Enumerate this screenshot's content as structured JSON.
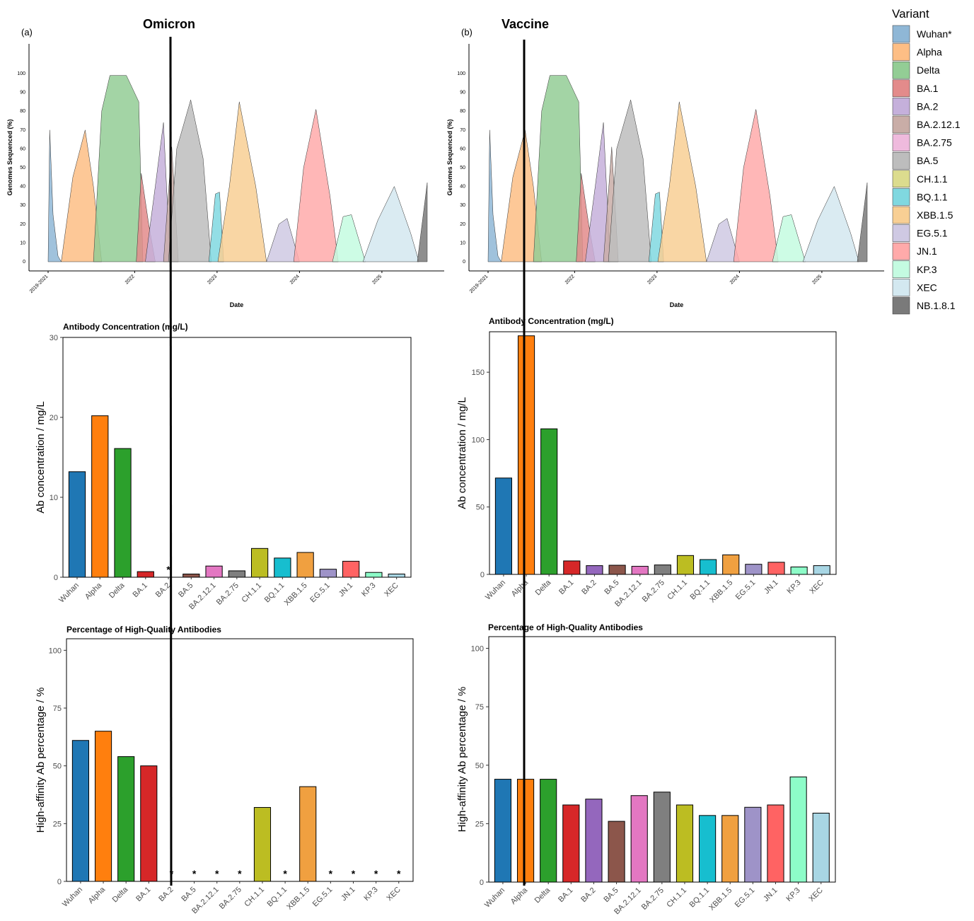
{
  "panels": [
    {
      "label": "(a)",
      "title": "Omicron"
    },
    {
      "label": "(b)",
      "title": "Vaccine"
    }
  ],
  "legend": {
    "title": "Variant",
    "items": [
      {
        "name": "Wuhan*",
        "color": "#8fb7d6"
      },
      {
        "name": "Alpha",
        "color": "#fdbe85"
      },
      {
        "name": "Delta",
        "color": "#93cd95"
      },
      {
        "name": "BA.1",
        "color": "#e38b8b"
      },
      {
        "name": "BA.2",
        "color": "#c5b0db"
      },
      {
        "name": "BA.2.12.1",
        "color": "#c9ada7"
      },
      {
        "name": "BA.2.75",
        "color": "#efbadd"
      },
      {
        "name": "BA.5",
        "color": "#bdbdbd"
      },
      {
        "name": "CH.1.1",
        "color": "#dcdc8e"
      },
      {
        "name": "BQ.1.1",
        "color": "#80d8e0"
      },
      {
        "name": "XBB.1.5",
        "color": "#f8cf94"
      },
      {
        "name": "EG.5.1",
        "color": "#cfc9e3"
      },
      {
        "name": "JN.1",
        "color": "#ffaaaa"
      },
      {
        "name": "KP.3",
        "color": "#c4fbe1"
      },
      {
        "name": "XEC",
        "color": "#d3e8f0"
      },
      {
        "name": "NB.1.8.1",
        "color": "#7a7a7a"
      }
    ]
  },
  "chart_data": [
    {
      "id": "omicron-sequencing",
      "type": "area",
      "ylabel": "Genomes Sequenced (%)",
      "xlabel": "Date",
      "x_ticks": [
        "2019-2021",
        "2022",
        "2023",
        "2024",
        "2025"
      ],
      "y_ticks": [
        0,
        10,
        20,
        30,
        40,
        50,
        60,
        70,
        80,
        90,
        100
      ],
      "ylim": [
        0,
        115
      ],
      "xlim": [
        2020.9,
        2025.5
      ],
      "series": [
        {
          "name": "Wuhan*",
          "x": [
            2020.9,
            2020.92,
            2020.96,
            2021.02,
            2021.06
          ],
          "y": [
            0,
            70,
            25,
            3,
            0
          ]
        },
        {
          "name": "Alpha",
          "x": [
            2021.06,
            2021.2,
            2021.35,
            2021.45,
            2021.55
          ],
          "y": [
            0,
            45,
            70,
            40,
            0
          ]
        },
        {
          "name": "Delta",
          "x": [
            2021.45,
            2021.55,
            2021.65,
            2021.85,
            2022.0,
            2022.05
          ],
          "y": [
            0,
            80,
            99,
            99,
            85,
            0
          ]
        },
        {
          "name": "BA.1",
          "x": [
            2021.97,
            2022.03,
            2022.12,
            2022.2
          ],
          "y": [
            0,
            47,
            20,
            0
          ]
        },
        {
          "name": "BA.2",
          "x": [
            2022.08,
            2022.2,
            2022.3,
            2022.38
          ],
          "y": [
            0,
            40,
            74,
            0
          ]
        },
        {
          "name": "BA.2.12.1",
          "x": [
            2022.3,
            2022.4,
            2022.48
          ],
          "y": [
            0,
            61,
            0
          ]
        },
        {
          "name": "BA.5",
          "x": [
            2022.36,
            2022.46,
            2022.63,
            2022.78,
            2022.88
          ],
          "y": [
            0,
            60,
            86,
            55,
            0
          ]
        },
        {
          "name": "BQ.1.1",
          "x": [
            2022.85,
            2022.93,
            2022.98,
            2023.03
          ],
          "y": [
            0,
            36,
            37,
            0
          ]
        },
        {
          "name": "XBB.1.5",
          "x": [
            2022.96,
            2023.1,
            2023.22,
            2023.42,
            2023.55
          ],
          "y": [
            0,
            40,
            85,
            40,
            0
          ]
        },
        {
          "name": "EG.5.1",
          "x": [
            2023.55,
            2023.7,
            2023.8,
            2023.95
          ],
          "y": [
            0,
            20,
            23,
            0
          ]
        },
        {
          "name": "JN.1",
          "x": [
            2023.88,
            2024.0,
            2024.15,
            2024.32,
            2024.42
          ],
          "y": [
            0,
            50,
            81,
            35,
            0
          ]
        },
        {
          "name": "KP.3",
          "x": [
            2024.35,
            2024.48,
            2024.58,
            2024.75
          ],
          "y": [
            0,
            24,
            25,
            0
          ]
        },
        {
          "name": "XEC",
          "x": [
            2024.72,
            2024.9,
            2025.1,
            2025.3,
            2025.4
          ],
          "y": [
            0,
            22,
            40,
            15,
            0
          ]
        },
        {
          "name": "NB.1.8.1",
          "x": [
            2025.38,
            2025.5,
            2025.5
          ],
          "y": [
            0,
            42,
            0
          ]
        }
      ]
    },
    {
      "id": "vaccine-sequencing",
      "type": "area",
      "ylabel": "Genomes Sequenced (%)",
      "xlabel": "Date",
      "x_ticks": [
        "2019-2021",
        "2022",
        "2023",
        "2024",
        "2025"
      ],
      "y_ticks": [
        0,
        10,
        20,
        30,
        40,
        50,
        60,
        70,
        80,
        90,
        100
      ],
      "ylim": [
        0,
        115
      ],
      "xlim": [
        2020.9,
        2025.5
      ],
      "series": [
        {
          "name": "Wuhan*",
          "x": [
            2020.9,
            2020.92,
            2020.96,
            2021.02,
            2021.06
          ],
          "y": [
            0,
            70,
            25,
            3,
            0
          ]
        },
        {
          "name": "Alpha",
          "x": [
            2021.06,
            2021.2,
            2021.35,
            2021.45,
            2021.55
          ],
          "y": [
            0,
            45,
            70,
            40,
            0
          ]
        },
        {
          "name": "Delta",
          "x": [
            2021.45,
            2021.55,
            2021.65,
            2021.85,
            2022.0,
            2022.05
          ],
          "y": [
            0,
            80,
            99,
            99,
            85,
            0
          ]
        },
        {
          "name": "BA.1",
          "x": [
            2021.97,
            2022.03,
            2022.12,
            2022.2
          ],
          "y": [
            0,
            47,
            20,
            0
          ]
        },
        {
          "name": "BA.2",
          "x": [
            2022.08,
            2022.2,
            2022.3,
            2022.38
          ],
          "y": [
            0,
            40,
            74,
            0
          ]
        },
        {
          "name": "BA.2.12.1",
          "x": [
            2022.3,
            2022.4,
            2022.48
          ],
          "y": [
            0,
            61,
            0
          ]
        },
        {
          "name": "BA.5",
          "x": [
            2022.36,
            2022.46,
            2022.63,
            2022.78,
            2022.88
          ],
          "y": [
            0,
            60,
            86,
            55,
            0
          ]
        },
        {
          "name": "BQ.1.1",
          "x": [
            2022.85,
            2022.93,
            2022.98,
            2023.03
          ],
          "y": [
            0,
            36,
            37,
            0
          ]
        },
        {
          "name": "XBB.1.5",
          "x": [
            2022.96,
            2023.1,
            2023.22,
            2023.42,
            2023.55
          ],
          "y": [
            0,
            40,
            85,
            40,
            0
          ]
        },
        {
          "name": "EG.5.1",
          "x": [
            2023.55,
            2023.7,
            2023.8,
            2023.95
          ],
          "y": [
            0,
            20,
            23,
            0
          ]
        },
        {
          "name": "JN.1",
          "x": [
            2023.88,
            2024.0,
            2024.15,
            2024.32,
            2024.42
          ],
          "y": [
            0,
            50,
            81,
            35,
            0
          ]
        },
        {
          "name": "KP.3",
          "x": [
            2024.35,
            2024.48,
            2024.58,
            2024.75
          ],
          "y": [
            0,
            24,
            25,
            0
          ]
        },
        {
          "name": "XEC",
          "x": [
            2024.72,
            2024.9,
            2025.1,
            2025.3,
            2025.4
          ],
          "y": [
            0,
            22,
            40,
            15,
            0
          ]
        },
        {
          "name": "NB.1.8.1",
          "x": [
            2025.38,
            2025.5,
            2025.5
          ],
          "y": [
            0,
            42,
            0
          ]
        }
      ]
    },
    {
      "id": "omicron-ab-concentration",
      "type": "bar",
      "title": "Antibody Concentration (mg/L)",
      "ylabel": "Ab concentration / mg/L",
      "categories": [
        "Wuhan",
        "Alpha",
        "Delta",
        "BA.1",
        "BA.2",
        "BA.5",
        "BA.2.12.1",
        "BA.2.75",
        "CH.1.1",
        "BQ.1.1",
        "XBB.1.5",
        "EG.5.1",
        "JN.1",
        "KP.3",
        "XEC"
      ],
      "values": [
        13.2,
        20.2,
        16.1,
        0.7,
        0,
        0.4,
        1.4,
        0.8,
        3.6,
        2.4,
        3.1,
        1.0,
        2.0,
        0.6,
        0.4
      ],
      "markers": [
        "",
        "",
        "",
        "",
        "*",
        "",
        "",
        "",
        "",
        "",
        "",
        "",
        "",
        "",
        ""
      ],
      "ylim": [
        0,
        30
      ],
      "y_ticks": [
        0,
        10,
        20,
        30
      ]
    },
    {
      "id": "vaccine-ab-concentration",
      "type": "bar",
      "title": "Antibody Concentration (mg/L)",
      "ylabel": "Ab concentration / mg/L",
      "categories": [
        "Wuhan",
        "Alpha",
        "Delta",
        "BA.1",
        "BA.2",
        "BA.5",
        "BA.2.12.1",
        "BA.2.75",
        "CH.1.1",
        "BQ.1.1",
        "XBB.1.5",
        "EG.5.1",
        "JN.1",
        "KP.3",
        "XEC"
      ],
      "values": [
        71.5,
        177,
        108,
        10,
        6.5,
        6.8,
        6,
        7,
        14,
        11,
        14.5,
        7.5,
        9,
        5.5,
        6.5
      ],
      "markers": [
        "",
        "",
        "",
        "",
        "",
        "",
        "",
        "",
        "",
        "",
        "",
        "",
        "",
        "",
        ""
      ],
      "ylim": [
        0,
        180
      ],
      "y_ticks": [
        0,
        50,
        100,
        150
      ]
    },
    {
      "id": "omicron-high-quality",
      "type": "bar",
      "title": "Percentage of High-Quality Antibodies",
      "ylabel": "High-affinity Ab percentage / %",
      "categories": [
        "Wuhan",
        "Alpha",
        "Delta",
        "BA.1",
        "BA.2",
        "BA.5",
        "BA.2.12.1",
        "BA.2.75",
        "CH.1.1",
        "BQ.1.1",
        "XBB.1.5",
        "EG.5.1",
        "JN.1",
        "KP.3",
        "XEC"
      ],
      "values": [
        61,
        65,
        54,
        50,
        0,
        0,
        0,
        0,
        32,
        0,
        41,
        0,
        0,
        0,
        0
      ],
      "markers": [
        "",
        "",
        "",
        "",
        "*",
        "*",
        "*",
        "*",
        "",
        "*",
        "",
        "*",
        "*",
        "*",
        "*"
      ],
      "ylim": [
        0,
        105
      ],
      "y_ticks": [
        0,
        25,
        50,
        75,
        100
      ]
    },
    {
      "id": "vaccine-high-quality",
      "type": "bar",
      "title": "Percentage of High-Quality Antibodies",
      "ylabel": "High-affinity Ab percentage / %",
      "categories": [
        "Wuhan",
        "Alpha",
        "Delta",
        "BA.1",
        "BA.2",
        "BA.5",
        "BA.2.12.1",
        "BA.2.75",
        "CH.1.1",
        "BQ.1.1",
        "XBB.1.5",
        "EG.5.1",
        "JN.1",
        "KP.3",
        "XEC"
      ],
      "values": [
        44,
        44,
        44,
        33,
        35.5,
        26,
        37,
        38.5,
        33,
        28.5,
        28.5,
        32,
        33,
        45,
        29.5
      ],
      "markers": [
        "",
        "",
        "",
        "",
        "",
        "",
        "",
        "",
        "",
        "",
        "",
        "",
        "",
        "",
        ""
      ],
      "ylim": [
        0,
        105
      ],
      "y_ticks": [
        0,
        25,
        50,
        75,
        100
      ]
    }
  ],
  "bar_colors": [
    "#1f77b4",
    "#ff7f0e",
    "#2ca02c",
    "#d62728",
    "#9467bd",
    "#8c564b",
    "#e377c2",
    "#7f7f7f",
    "#bcbd22",
    "#17becf",
    "#f0a040",
    "#9e93c8",
    "#ff6363",
    "#8dfcc8",
    "#a8d6e4"
  ]
}
